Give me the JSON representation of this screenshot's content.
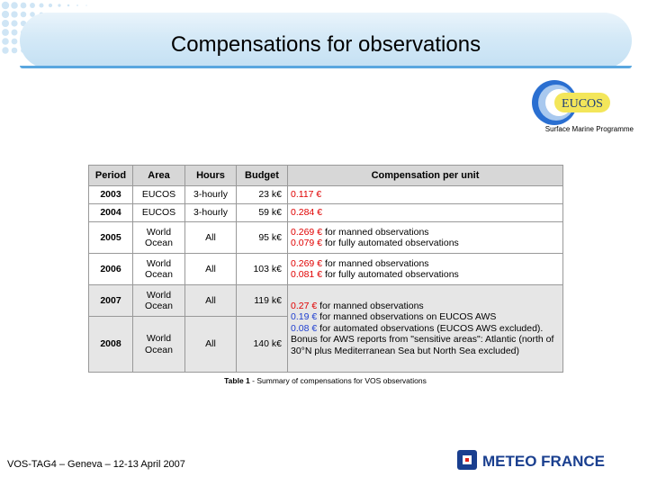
{
  "header": {
    "title": "Compensations for observations"
  },
  "logo": {
    "name": "EUCOS",
    "subtitle": "Surface Marine Programme",
    "colors": {
      "ring_blue": "#2a6fd1",
      "ring_light": "#a9c9ef",
      "badge": "#f3e65a"
    }
  },
  "table": {
    "headers": [
      "Period",
      "Area",
      "Hours",
      "Budget",
      "Compensation per unit"
    ],
    "rows": [
      {
        "period": "2003",
        "area": "EUCOS",
        "hours": "3-hourly",
        "budget": "23 k€",
        "lines": [
          {
            "parts": [
              {
                "text": "0.117 €",
                "color": "red"
              }
            ]
          }
        ]
      },
      {
        "period": "2004",
        "area": "EUCOS",
        "hours": "3-hourly",
        "budget": "59 k€",
        "lines": [
          {
            "parts": [
              {
                "text": "0.284 €",
                "color": "red"
              }
            ]
          }
        ]
      },
      {
        "period": "2005",
        "area": "World Ocean",
        "hours": "All",
        "budget": "95 k€",
        "lines": [
          {
            "parts": [
              {
                "text": "0.269 €",
                "color": "red"
              },
              {
                "text": " for manned observations",
                "color": "black"
              }
            ]
          },
          {
            "parts": [
              {
                "text": "0.079 €",
                "color": "red"
              },
              {
                "text": " for fully automated observations",
                "color": "black"
              }
            ]
          }
        ]
      },
      {
        "period": "2006",
        "area": "World Ocean",
        "hours": "All",
        "budget": "103 k€",
        "lines": [
          {
            "parts": [
              {
                "text": "0.269 €",
                "color": "red"
              },
              {
                "text": " for manned observations",
                "color": "black"
              }
            ]
          },
          {
            "parts": [
              {
                "text": "0.081 €",
                "color": "red"
              },
              {
                "text": " for fully automated observations",
                "color": "black"
              }
            ]
          }
        ]
      },
      {
        "period": "2007",
        "area": "World Ocean",
        "hours": "All",
        "budget": "119 k€",
        "shaded": true,
        "lines": [
          {
            "parts": [
              {
                "text": "0.27 €",
                "color": "red"
              },
              {
                "text": " for manned observations",
                "color": "black"
              }
            ]
          },
          {
            "parts": [
              {
                "text": "0.19 €",
                "color": "blue"
              },
              {
                "text": " for manned observations on EUCOS AWS",
                "color": "black"
              }
            ]
          },
          {
            "parts": [
              {
                "text": "0.08 €",
                "color": "blue"
              },
              {
                "text": " for automated observations (EUCOS AWS excluded). Bonus for AWS reports from \"sensitive areas\": Atlantic (north of 30°N plus Mediterranean Sea but North Sea excluded)",
                "color": "black"
              }
            ]
          }
        ]
      },
      {
        "period": "2008",
        "area": "World Ocean",
        "hours": "All",
        "budget": "140 k€",
        "shaded": true,
        "lines": []
      }
    ]
  },
  "caption": {
    "label": "Table 1",
    "text": " - Summary of compensations for VOS observations"
  },
  "footer": {
    "text": "VOS-TAG4 – Geneva – 12-13 April 2007"
  },
  "meteo_logo": {
    "text": "METEO FRANCE",
    "colors": {
      "blue": "#1a3f8f",
      "red": "#e2231a"
    }
  }
}
